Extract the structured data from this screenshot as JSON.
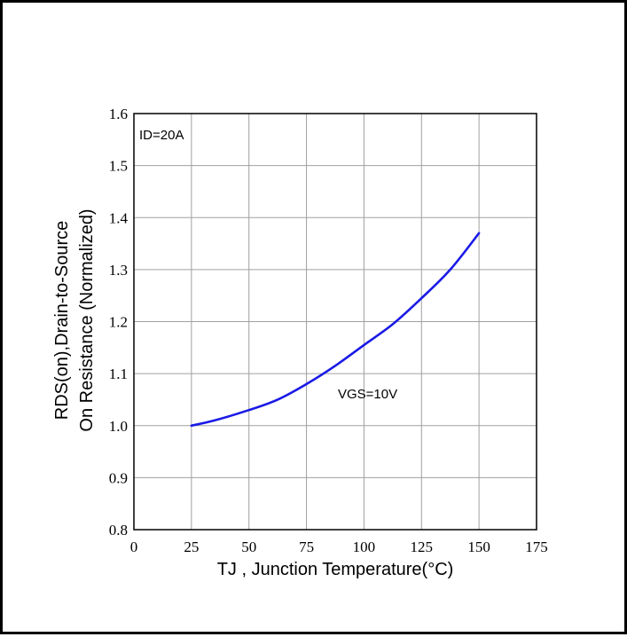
{
  "chart_data": {
    "type": "line",
    "title": "",
    "xlabel": "TJ , Junction Temperature(°C)",
    "ylabel_lines": [
      "RDS(on),Drain-to-Source",
      "On Resistance (Normalized)"
    ],
    "xlim": [
      0,
      175
    ],
    "ylim": [
      0.8,
      1.6
    ],
    "x_ticks": [
      0,
      25,
      50,
      75,
      100,
      125,
      150,
      175
    ],
    "y_ticks": [
      0.8,
      0.9,
      1.0,
      1.1,
      1.2,
      1.3,
      1.4,
      1.5,
      1.6
    ],
    "x_tick_labels": [
      "0",
      "25",
      "50",
      "75",
      "100",
      "125",
      "150",
      "175"
    ],
    "y_tick_labels": [
      "0.8",
      "0.9",
      "1.0",
      "1.1",
      "1.2",
      "1.3",
      "1.4",
      "1.5",
      "1.6"
    ],
    "grid": true,
    "annotations": [
      "ID=20A",
      "VGS=10V"
    ],
    "series_color": "#1a1ae6",
    "series": [
      {
        "x": [
          25,
          35,
          50,
          62.5,
          75,
          87.5,
          100,
          112.5,
          125,
          137.5,
          150
        ],
        "values": [
          1.0,
          1.01,
          1.03,
          1.05,
          1.08,
          1.115,
          1.155,
          1.195,
          1.245,
          1.3,
          1.37
        ]
      }
    ]
  }
}
